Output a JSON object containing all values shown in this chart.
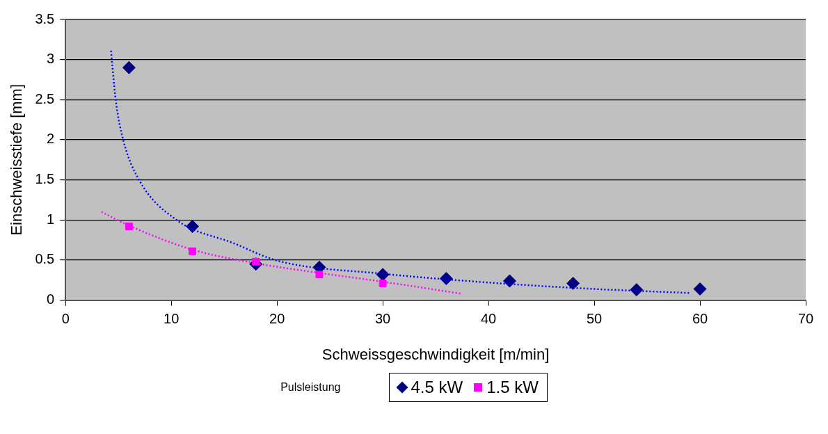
{
  "chart_data": {
    "type": "scatter",
    "xlabel": "Schweissgeschwindigkeit [m/min]",
    "ylabel": "Einschweisstiefe [mm]",
    "legend_title": "Pulsleistung",
    "xlim": [
      0,
      70
    ],
    "xticks": [
      0,
      10,
      20,
      30,
      40,
      50,
      60,
      70
    ],
    "ylim": [
      0,
      3.5
    ],
    "yticks": [
      0,
      0.5,
      1,
      1.5,
      2,
      2.5,
      3,
      3.5
    ],
    "grid": "y",
    "legend": "bottom",
    "series": [
      {
        "name": "4.5 kW",
        "type": "scatter",
        "color": "#000080",
        "marker": "diamond",
        "x": [
          6,
          12,
          18,
          24,
          30,
          36,
          42,
          48,
          54,
          60
        ],
        "values": [
          2.9,
          0.92,
          0.45,
          0.41,
          0.32,
          0.27,
          0.24,
          0.21,
          0.13,
          0.14
        ]
      },
      {
        "name": "1.5 kW",
        "type": "scatter",
        "color": "#ff00ff",
        "marker": "square",
        "x": [
          6,
          12,
          18,
          24,
          30
        ],
        "values": [
          0.92,
          0.61,
          0.48,
          0.32,
          0.21
        ]
      },
      {
        "type": "line",
        "color": "#0000ff",
        "line_style": "dotted",
        "marker": "none",
        "x": [
          4.3,
          4.75,
          5.45,
          6.95,
          10.5,
          15.9,
          20.1,
          30,
          40,
          50,
          59
        ],
        "values": [
          3.11,
          2.49,
          2.0,
          1.5,
          1.0,
          0.71,
          0.49,
          0.33,
          0.22,
          0.14,
          0.09
        ]
      },
      {
        "type": "line",
        "color": "#ff00ff",
        "line_style": "dotted",
        "marker": "none",
        "x": [
          3.4,
          6,
          12,
          18,
          24,
          30,
          37.5
        ],
        "values": [
          1.1,
          0.93,
          0.63,
          0.46,
          0.34,
          0.23,
          0.08
        ]
      }
    ]
  }
}
